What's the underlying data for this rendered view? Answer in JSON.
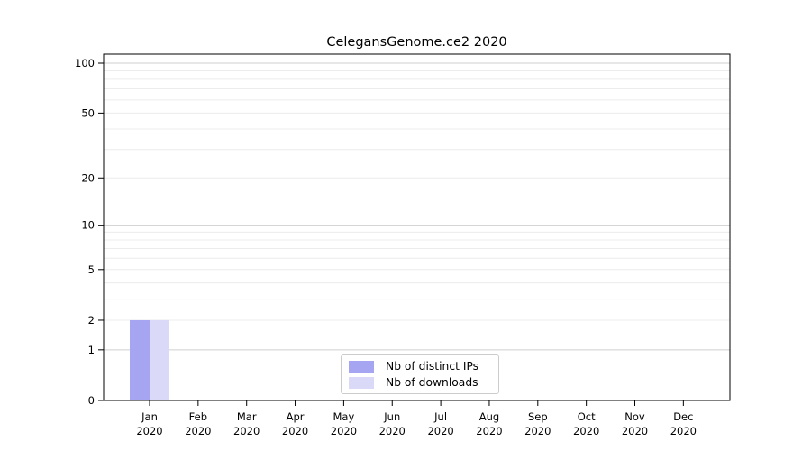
{
  "chart_data": {
    "type": "bar",
    "title": "CelegansGenome.ce2 2020",
    "months": [
      "Jan",
      "Feb",
      "Mar",
      "Apr",
      "May",
      "Jun",
      "Jul",
      "Aug",
      "Sep",
      "Oct",
      "Nov",
      "Dec"
    ],
    "year": "2020",
    "series": [
      {
        "name": "Nb of distinct IPs",
        "color": "#a5a5f1",
        "values": [
          2,
          0,
          0,
          0,
          0,
          0,
          0,
          0,
          0,
          0,
          0,
          0
        ]
      },
      {
        "name": "Nb of downloads",
        "color": "#dadaf8",
        "values": [
          2,
          0,
          0,
          0,
          0,
          0,
          0,
          0,
          0,
          0,
          0,
          0
        ]
      }
    ],
    "y_scale": "log1p",
    "y_ticks": [
      0,
      1,
      2,
      5,
      10,
      20,
      50,
      100
    ],
    "y_major_gridlines": [
      1,
      10,
      100
    ],
    "y_minor_gridlines": [
      2,
      3,
      4,
      5,
      6,
      7,
      8,
      9,
      20,
      30,
      40,
      50,
      60,
      70,
      80,
      90
    ],
    "ylim": [
      0,
      113
    ],
    "grid": "horizontal",
    "legend_position": "lower center",
    "colors": {
      "major_grid": "#cfcfcf",
      "minor_grid": "#ececec",
      "axis": "#000000",
      "background": "#ffffff"
    }
  }
}
